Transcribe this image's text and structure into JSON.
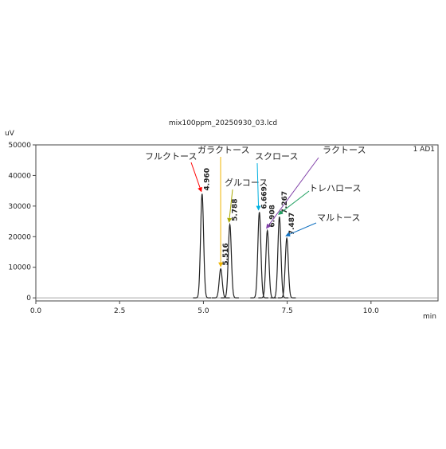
{
  "chart_data": {
    "type": "chromatogram",
    "title": "mix100ppm_20250930_03.lcd",
    "y_unit": "uV",
    "x_unit": "min",
    "channel": "1 AD1",
    "xlim": [
      0,
      12
    ],
    "xticks": [
      {
        "value": 0,
        "label": "0.0"
      },
      {
        "value": 2.5,
        "label": "2.5"
      },
      {
        "value": 5,
        "label": "5.0"
      },
      {
        "value": 7.5,
        "label": "7.5"
      },
      {
        "value": 10,
        "label": "10.0"
      }
    ],
    "ylim": [
      -1000,
      50000
    ],
    "yticks": [
      0,
      10000,
      20000,
      30000,
      40000,
      50000
    ],
    "line_color": "#222222",
    "peaks": [
      {
        "name": "フルクトース",
        "color": "#ff0000",
        "time": 4.96,
        "time_label": "4.960",
        "height": 34000
      },
      {
        "name": "ガラクトース",
        "color": "#f0b400",
        "time": 5.516,
        "time_label": "5.516",
        "height": 9500
      },
      {
        "name": "グルコース",
        "color": "#a8a800",
        "time": 5.788,
        "time_label": "5.788",
        "height": 24000
      },
      {
        "name": "スクロース",
        "color": "#00b0e0",
        "time": 6.669,
        "time_label": "6.669",
        "height": 28000
      },
      {
        "name": "ラクトース",
        "color": "#8040a8",
        "time": 6.908,
        "time_label": "6.908",
        "height": 22000
      },
      {
        "name": "トレハロース",
        "color": "#20a060",
        "time": 7.267,
        "time_label": "7.267",
        "height": 26500
      },
      {
        "name": "マルトース",
        "color": "#1070c0",
        "time": 7.487,
        "time_label": "7.487",
        "height": 19500
      }
    ]
  }
}
